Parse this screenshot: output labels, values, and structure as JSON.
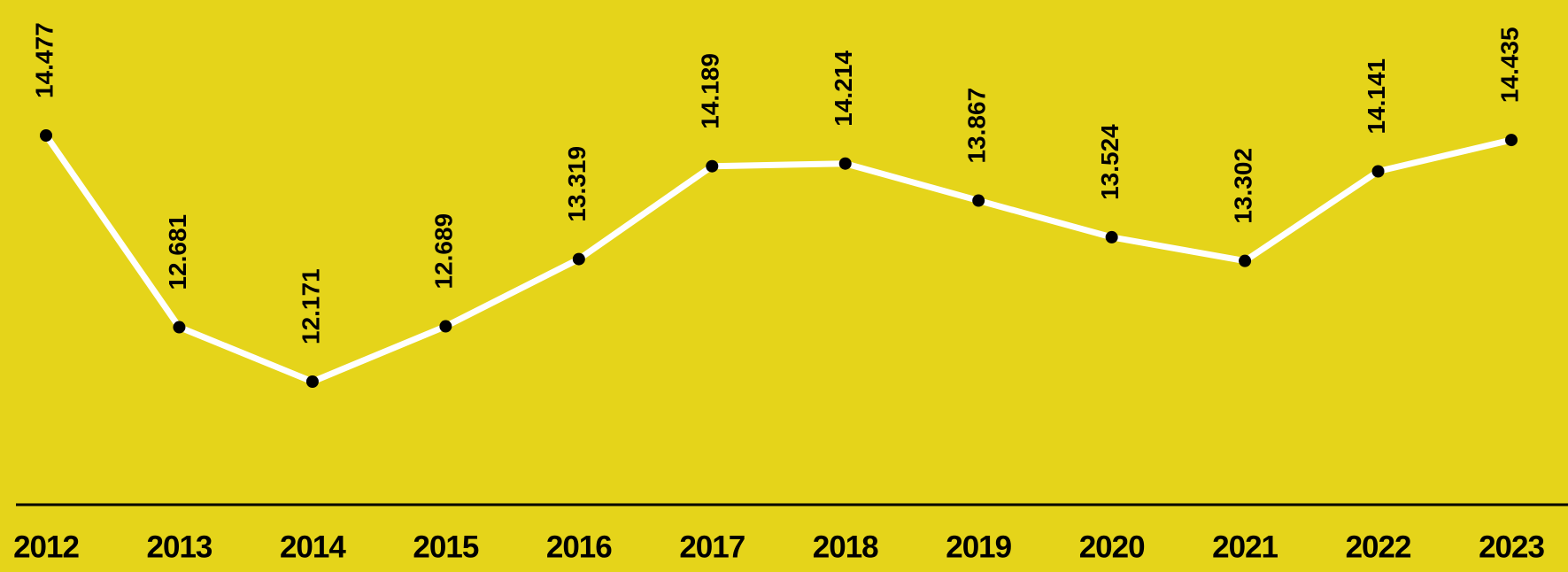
{
  "chart_data": {
    "type": "line",
    "categories": [
      "2012",
      "2013",
      "2014",
      "2015",
      "2016",
      "2017",
      "2018",
      "2019",
      "2020",
      "2021",
      "2022",
      "2023"
    ],
    "values": [
      14.477,
      12.681,
      12.171,
      12.689,
      13.319,
      14.189,
      14.214,
      13.867,
      13.524,
      13.302,
      14.141,
      14.435
    ],
    "color": "#ffffff",
    "marker_color": "#000000",
    "background": "#e5d41a"
  }
}
